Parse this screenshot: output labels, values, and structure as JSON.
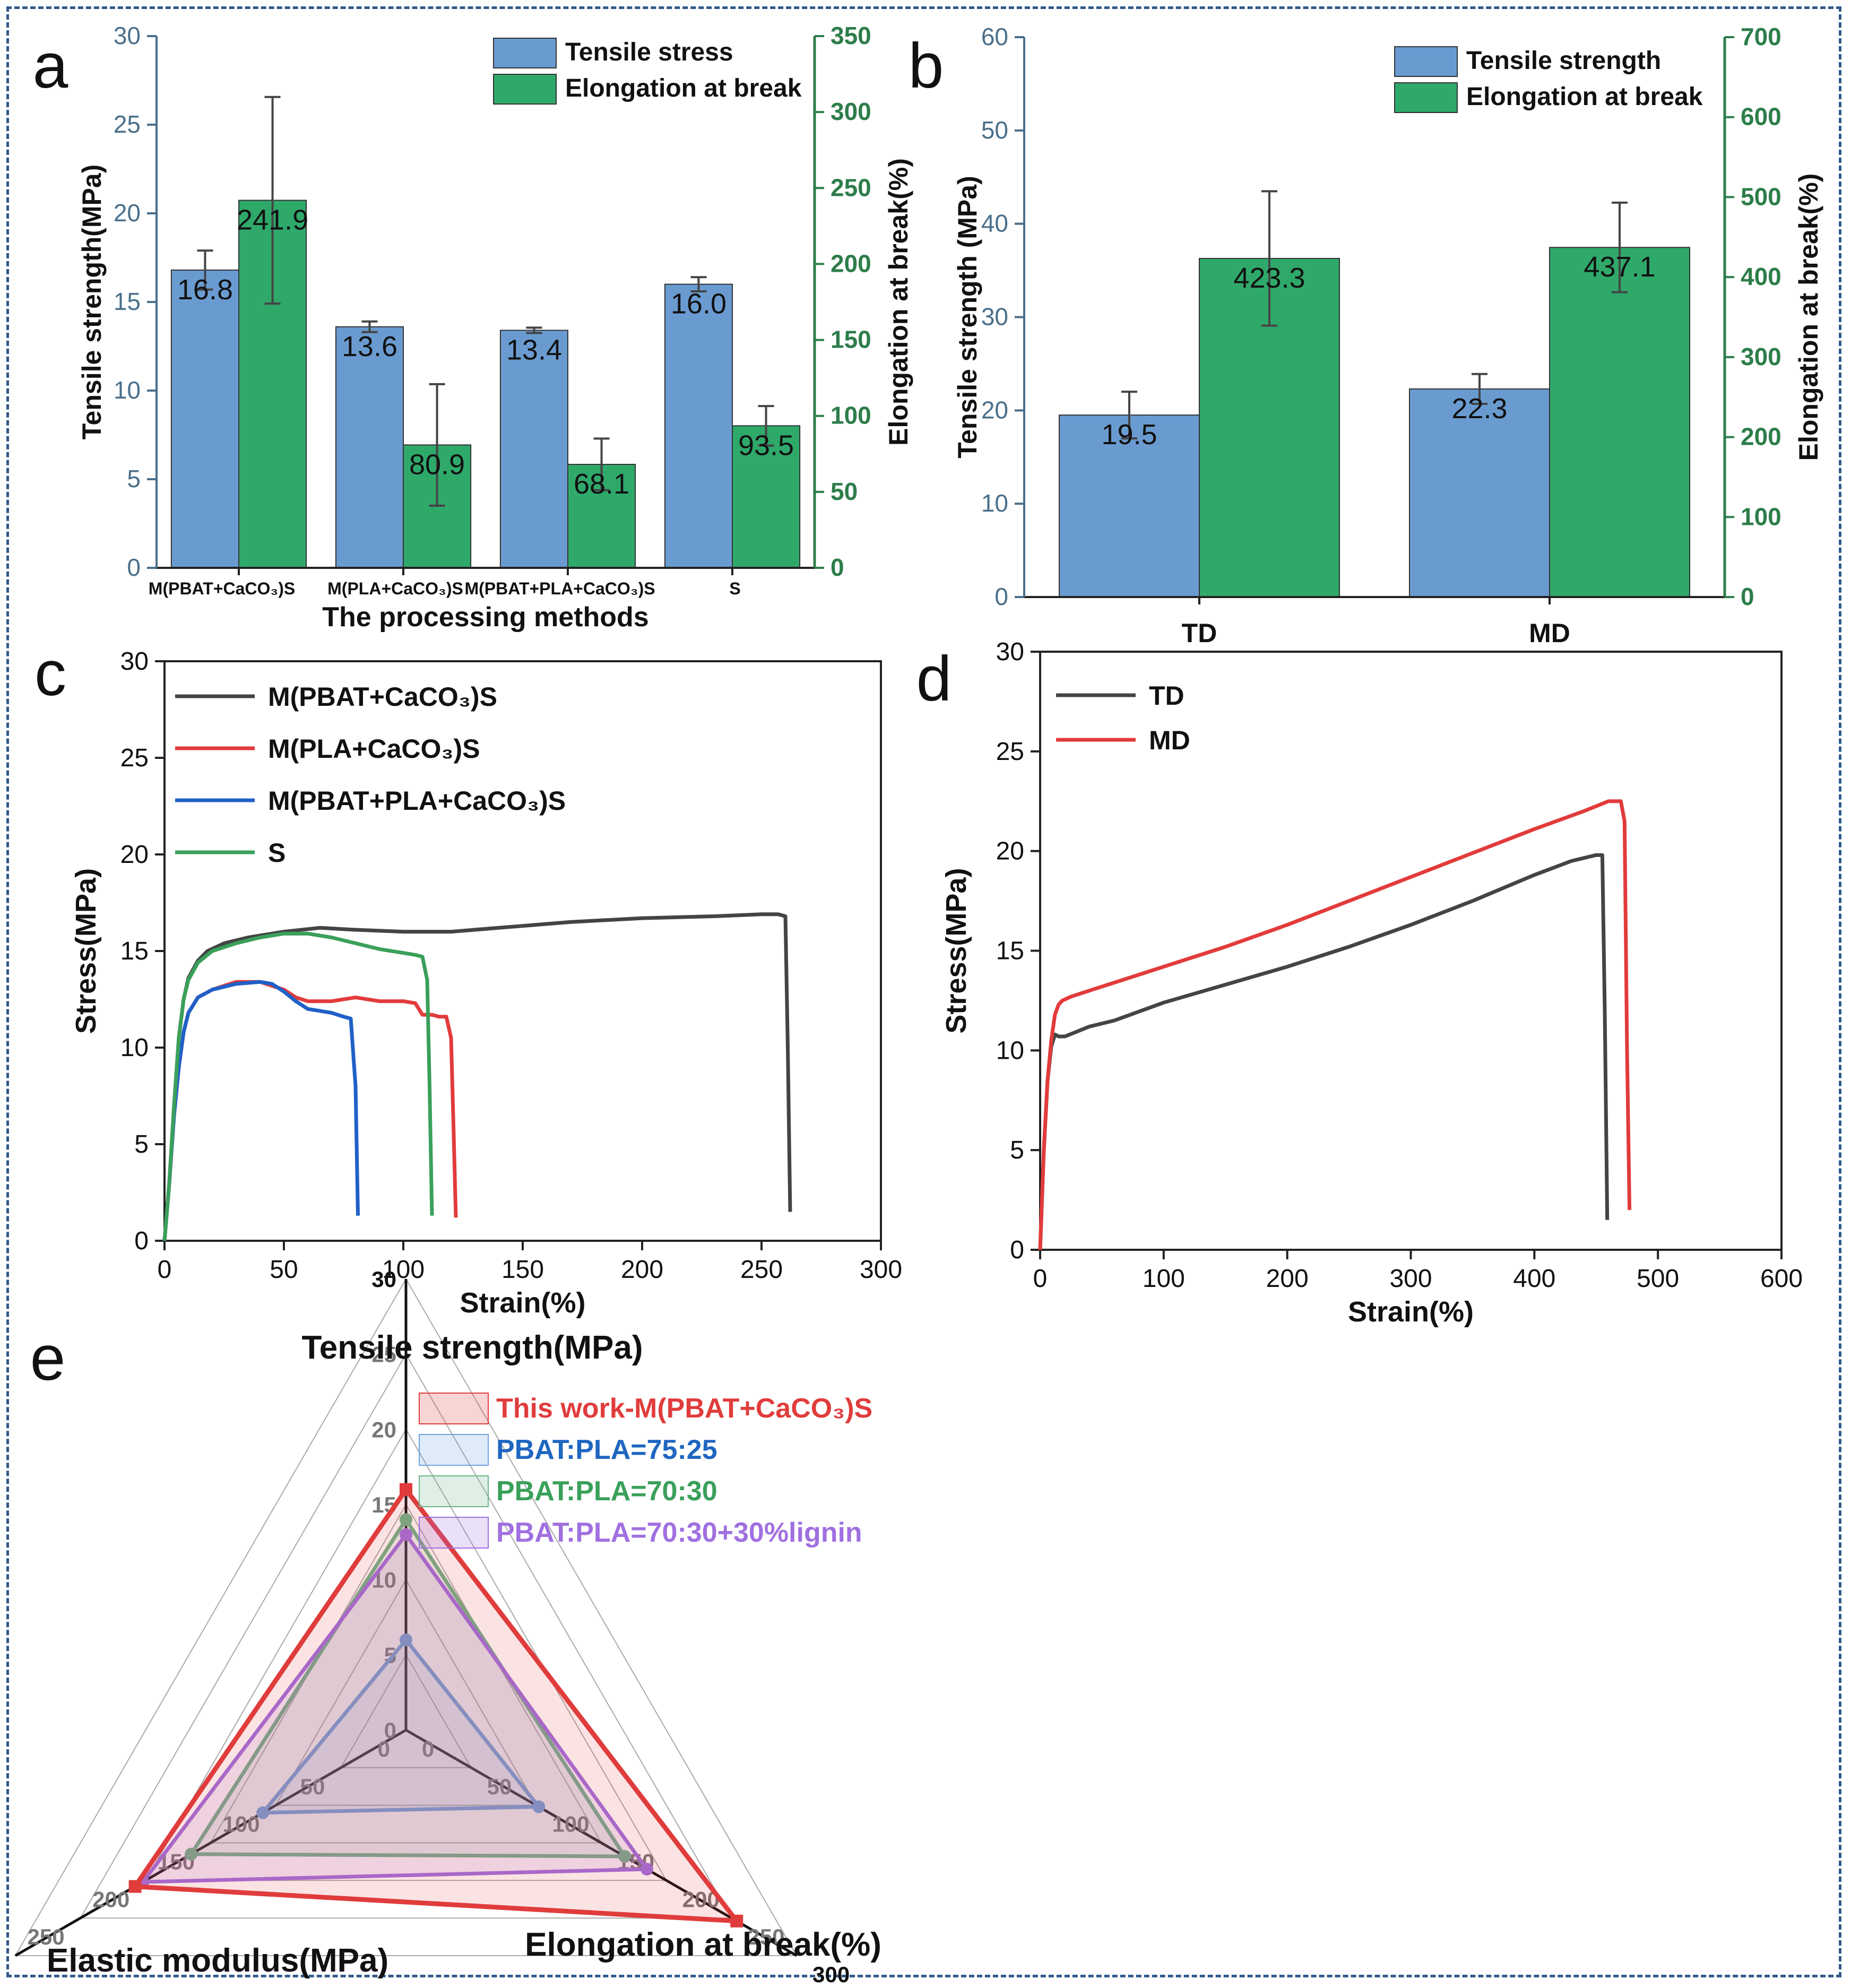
{
  "figure": {
    "palette": {
      "blue_bar": "#6a9bd0",
      "green_bar": "#2fa96a",
      "left_axis_text": "#4a6f8a",
      "right_axis": "#2d7d4a",
      "black": "#111111",
      "red": "#e23b3b",
      "blue_line": "#2060c8",
      "green_line": "#3aa05a",
      "dark_line": "#444444",
      "radar_red": "#e03c3c",
      "radar_blue": "#6fa2e0",
      "radar_green": "#6fb48a",
      "radar_purple": "#a070e0"
    }
  },
  "chart_data": [
    {
      "id": "a",
      "panel_label": "a",
      "type": "bar",
      "xlabel": "The processing methods",
      "ylabel": "Tensile strength(MPa)",
      "ylabel_right": "Elongation at break(%)",
      "categories": [
        "M(PBAT+CaCO₃)S",
        "M(PLA+CaCO₃)S",
        "M(PBAT+PLA+CaCO₃)S",
        "S"
      ],
      "ylim": [
        0,
        30
      ],
      "ylim_right": [
        0,
        350
      ],
      "yticks": [
        "0",
        "5",
        "10",
        "15",
        "20",
        "25",
        "30"
      ],
      "yticks_right": [
        "0",
        "50",
        "100",
        "150",
        "200",
        "250",
        "300",
        "350"
      ],
      "series": [
        {
          "name": "Tensile stress",
          "axis": "left",
          "values": [
            16.8,
            13.6,
            13.4,
            16.0
          ],
          "errors": [
            1.1,
            0.3,
            0.15,
            0.4
          ],
          "labels": [
            "16.8",
            "13.6",
            "13.4",
            "16.0"
          ]
        },
        {
          "name": "Elongation at break",
          "axis": "right",
          "values": [
            241.9,
            80.9,
            68.1,
            93.5
          ],
          "errors": [
            68,
            40,
            17,
            13
          ],
          "labels": [
            "241.9",
            "80.9",
            "68.1",
            "93.5"
          ]
        }
      ]
    },
    {
      "id": "b",
      "panel_label": "b",
      "type": "bar",
      "xlabel": "",
      "ylabel": "Tensile strength (MPa)",
      "ylabel_right": "Elongation at break(%)",
      "categories": [
        "TD",
        "MD"
      ],
      "ylim": [
        0,
        60
      ],
      "ylim_right": [
        0,
        700
      ],
      "yticks": [
        "0",
        "10",
        "20",
        "30",
        "40",
        "50",
        "60"
      ],
      "yticks_right": [
        "0",
        "100",
        "200",
        "300",
        "400",
        "500",
        "600",
        "700"
      ],
      "series": [
        {
          "name": "Tensile strength",
          "axis": "left",
          "values": [
            19.5,
            22.3
          ],
          "errors": [
            2.5,
            1.6
          ],
          "labels": [
            "19.5",
            "22.3"
          ]
        },
        {
          "name": "Elongation at break",
          "axis": "right",
          "values": [
            423.3,
            437.1
          ],
          "errors": [
            84,
            56
          ],
          "labels": [
            "423.3",
            "437.1"
          ]
        }
      ]
    },
    {
      "id": "c",
      "panel_label": "c",
      "type": "line",
      "xlabel": "Strain(%)",
      "ylabel": "Stress(MPa)",
      "xlim": [
        0,
        300
      ],
      "ylim": [
        0,
        30
      ],
      "xticks": [
        "0",
        "50",
        "100",
        "150",
        "200",
        "250",
        "300"
      ],
      "yticks": [
        "0",
        "5",
        "10",
        "15",
        "20",
        "25",
        "30"
      ],
      "series": [
        {
          "name": "M(PBAT+CaCO₃)S",
          "color": "#444444",
          "x": [
            0,
            2,
            4,
            6,
            8,
            10,
            14,
            18,
            25,
            35,
            50,
            65,
            80,
            100,
            120,
            140,
            170,
            200,
            230,
            250,
            257,
            260,
            261,
            262
          ],
          "y": [
            0,
            3,
            7,
            10.5,
            12.5,
            13.6,
            14.5,
            15.0,
            15.4,
            15.7,
            16.0,
            16.2,
            16.1,
            16.0,
            16.0,
            16.2,
            16.5,
            16.7,
            16.8,
            16.9,
            16.9,
            16.8,
            10,
            1.5
          ]
        },
        {
          "name": "M(PLA+CaCO₃)S",
          "color": "#e23b3b",
          "x": [
            0,
            2,
            4,
            6,
            8,
            10,
            14,
            20,
            30,
            40,
            50,
            55,
            60,
            70,
            80,
            90,
            100,
            105,
            108,
            112,
            115,
            118,
            120,
            121,
            122
          ],
          "y": [
            0,
            3,
            6.5,
            9,
            10.8,
            11.8,
            12.6,
            13.0,
            13.4,
            13.4,
            13.0,
            12.6,
            12.4,
            12.4,
            12.6,
            12.4,
            12.4,
            12.3,
            11.7,
            11.7,
            11.6,
            11.6,
            10.5,
            6,
            1.2
          ]
        },
        {
          "name": "M(PBAT+PLA+CaCO₃)S",
          "color": "#2060c8",
          "x": [
            0,
            2,
            4,
            6,
            8,
            10,
            14,
            20,
            30,
            40,
            45,
            50,
            55,
            60,
            65,
            70,
            75,
            78,
            80,
            81
          ],
          "y": [
            0,
            3,
            6.5,
            9,
            10.8,
            11.8,
            12.6,
            13.0,
            13.3,
            13.4,
            13.3,
            12.9,
            12.4,
            12.0,
            11.9,
            11.8,
            11.6,
            11.5,
            8,
            1.3
          ]
        },
        {
          "name": "S",
          "color": "#3aa05a",
          "x": [
            0,
            2,
            4,
            6,
            8,
            10,
            14,
            20,
            30,
            40,
            50,
            60,
            70,
            80,
            90,
            100,
            105,
            108,
            110,
            111,
            112
          ],
          "y": [
            0,
            3,
            7,
            10.5,
            12.5,
            13.5,
            14.4,
            15.0,
            15.4,
            15.7,
            15.9,
            15.9,
            15.7,
            15.4,
            15.1,
            14.9,
            14.8,
            14.7,
            13.5,
            8,
            1.3
          ]
        }
      ]
    },
    {
      "id": "d",
      "panel_label": "d",
      "type": "line",
      "xlabel": "Strain(%)",
      "ylabel": "Stress(MPa)",
      "xlim": [
        0,
        600
      ],
      "ylim": [
        0,
        30
      ],
      "xticks": [
        "0",
        "100",
        "200",
        "300",
        "400",
        "500",
        "600"
      ],
      "yticks": [
        "0",
        "5",
        "10",
        "15",
        "20",
        "25",
        "30"
      ],
      "series": [
        {
          "name": "TD",
          "color": "#444444",
          "x": [
            0,
            3,
            6,
            9,
            12,
            15,
            20,
            40,
            60,
            100,
            150,
            200,
            250,
            300,
            350,
            400,
            430,
            450,
            455,
            457,
            459
          ],
          "y": [
            0,
            5,
            8.5,
            10.2,
            10.8,
            10.7,
            10.7,
            11.2,
            11.5,
            12.4,
            13.3,
            14.2,
            15.2,
            16.3,
            17.5,
            18.8,
            19.5,
            19.8,
            19.8,
            12,
            1.5
          ]
        },
        {
          "name": "MD",
          "color": "#e23b3b",
          "x": [
            0,
            3,
            6,
            9,
            12,
            15,
            18,
            25,
            50,
            100,
            150,
            200,
            250,
            300,
            350,
            400,
            440,
            460,
            470,
            473,
            475,
            477
          ],
          "y": [
            0,
            5,
            8.5,
            10.5,
            11.8,
            12.3,
            12.5,
            12.7,
            13.2,
            14.2,
            15.2,
            16.3,
            17.5,
            18.7,
            19.9,
            21.1,
            22.0,
            22.5,
            22.5,
            21.5,
            10,
            2
          ]
        }
      ]
    },
    {
      "id": "e",
      "panel_label": "e",
      "type": "radar",
      "axes": [
        {
          "label": "Tensile strength(MPa)",
          "max": 30,
          "ticks": [
            "0",
            "5",
            "10",
            "15",
            "20",
            "25",
            "30"
          ]
        },
        {
          "label": "Elongation at break(%)",
          "max": 300,
          "ticks": [
            "0",
            "50",
            "100",
            "150",
            "200",
            "250",
            "300"
          ]
        },
        {
          "label": "Elastic modulus(MPa)",
          "max": 300,
          "ticks": [
            "0",
            "50",
            "100",
            "150",
            "200",
            "250",
            "300"
          ]
        }
      ],
      "series": [
        {
          "name": "This work-M(PBAT+CaCO₃)S",
          "values": [
            16,
            254,
            208
          ]
        },
        {
          "name": "PBAT:PLA=75:25",
          "values": [
            6,
            102,
            110
          ]
        },
        {
          "name": "PBAT:PLA=70:30",
          "values": [
            14,
            168,
            165
          ]
        },
        {
          "name": "PBAT:PLA=70:30+30%lignin",
          "values": [
            13,
            185,
            202
          ]
        }
      ]
    }
  ]
}
